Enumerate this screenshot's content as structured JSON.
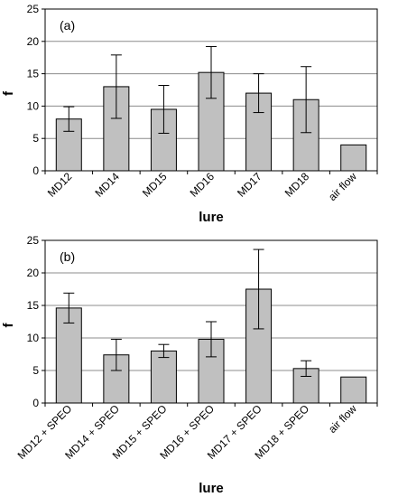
{
  "chart_data": [
    {
      "type": "bar",
      "panel_label": "(a)",
      "ylabel": "f",
      "xlabel": "lure",
      "ylim": [
        0,
        25
      ],
      "yticks": [
        0,
        5,
        10,
        15,
        20,
        25
      ],
      "grid": true,
      "bar_color": "#c0c0c0",
      "categories": [
        "MD12",
        "MD14",
        "MD15",
        "MD16",
        "MD17",
        "MD18",
        "air flow"
      ],
      "values": [
        8.0,
        13.0,
        9.5,
        15.2,
        12.0,
        11.0,
        4.0
      ],
      "error": [
        1.9,
        4.9,
        3.7,
        4.0,
        3.0,
        5.1,
        null
      ]
    },
    {
      "type": "bar",
      "panel_label": "(b)",
      "ylabel": "f",
      "xlabel": "lure",
      "ylim": [
        0,
        25
      ],
      "yticks": [
        0,
        5,
        10,
        15,
        20,
        25
      ],
      "grid": true,
      "bar_color": "#c0c0c0",
      "categories": [
        "MD12 + SPEO",
        "MD14 + SPEO",
        "MD15 + SPEO",
        "MD16 + SPEO",
        "MD17 + SPEO",
        "MD18 + SPEO",
        "air flow"
      ],
      "values": [
        14.6,
        7.4,
        8.0,
        9.8,
        17.5,
        5.3,
        4.0
      ],
      "error": [
        2.3,
        2.4,
        1.0,
        2.7,
        6.1,
        1.2,
        null
      ]
    }
  ]
}
